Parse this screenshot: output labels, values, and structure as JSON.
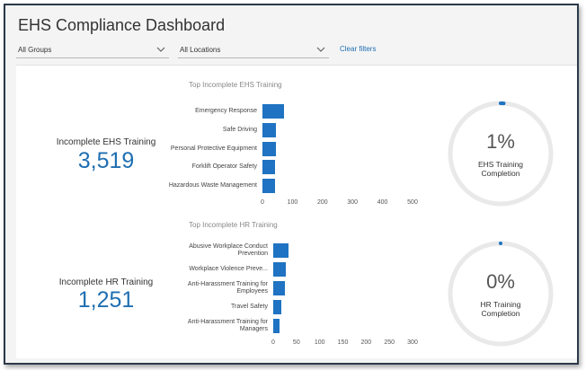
{
  "header": {
    "title": "EHS Compliance Dashboard"
  },
  "filters": {
    "groups": "All Groups",
    "locations": "All Locations",
    "clear": "Clear filters"
  },
  "kpis": [
    {
      "label": "Incomplete EHS Training",
      "value": "3,519"
    },
    {
      "label": "Incomplete HR Training",
      "value": "1,251"
    }
  ],
  "gauges": [
    {
      "value": 1,
      "label": "1%",
      "caption": "EHS Training Completion"
    },
    {
      "value": 0,
      "label": "0%",
      "caption": "HR Training Completion"
    }
  ],
  "chart_data": [
    {
      "type": "bar",
      "orientation": "horizontal",
      "title": "Top Incomplete EHS Training",
      "categories": [
        "Emergency Response",
        "Safe Driving",
        "Personal Protective Equipment",
        "Forklift Operator Safety",
        "Hazardous Waste Management"
      ],
      "values": [
        72,
        45,
        45,
        43,
        42
      ],
      "color": "#1f73c2",
      "xlim": [
        0,
        500
      ],
      "xticks": [
        0,
        100,
        200,
        300,
        400,
        500
      ]
    },
    {
      "type": "bar",
      "orientation": "horizontal",
      "title": "Top Incomplete HR Training",
      "categories": [
        "Abusive Workplace Conduct Prevention",
        "Workplace Violence Preve...",
        "Anti-Harassment Training for Employees",
        "Travel Safety",
        "Anti-Harassment Training for Managers"
      ],
      "values": [
        33,
        27,
        25,
        17,
        14
      ],
      "color": "#1f73c2",
      "xlim": [
        0,
        300
      ],
      "xticks": [
        0,
        50,
        100,
        150,
        200,
        250,
        300
      ]
    }
  ]
}
